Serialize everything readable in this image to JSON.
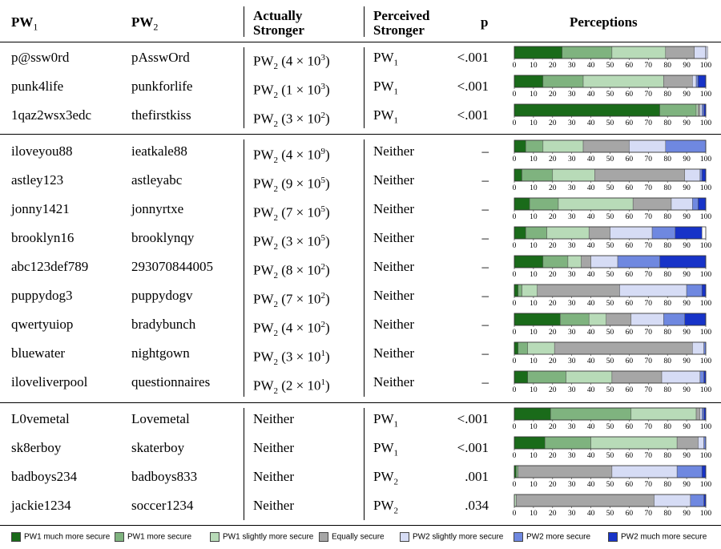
{
  "header": {
    "pw1": "PW",
    "pw1_sub": "1",
    "pw2": "PW",
    "pw2_sub": "2",
    "actually_line1": "Actually",
    "actually_line2": "Stronger",
    "perceived_line1": "Perceived",
    "perceived_line2": "Stronger",
    "p": "p",
    "perceptions": "Perceptions"
  },
  "chart_data": {
    "type": "bar",
    "orientation": "horizontal-stacked-100",
    "xlim": [
      0,
      100
    ],
    "ticks": [
      "0",
      "10",
      "20",
      "30",
      "40",
      "50",
      "60",
      "70",
      "80",
      "90",
      "100"
    ],
    "categories_legend": [
      "PW1 much more secure",
      "PW1 more secure",
      "PW1 slightly more secure",
      "Equally secure",
      "PW2 slightly more secure",
      "PW2 more secure",
      "PW2 much more secure"
    ],
    "colors": [
      "#1a6b1a",
      "#7fb37f",
      "#b8dbb8",
      "#a6a6a6",
      "#d6dcf5",
      "#6f88e0",
      "#1733c8"
    ],
    "rows": [
      {
        "pw1": "p@ssw0rd",
        "pw2": "pAsswOrd",
        "actual_base": "PW",
        "actual_sub": "2",
        "actual_rest": " (4 × 10",
        "actual_exp": "3",
        "actual_close": ")",
        "perceived": "PW",
        "perceived_sub": "1",
        "p": "<.001",
        "values": [
          25,
          26,
          28,
          15,
          7,
          0,
          0
        ]
      },
      {
        "pw1": "punk4life",
        "pw2": "punkforlife",
        "actual_base": "PW",
        "actual_sub": "2",
        "actual_rest": " (1 × 10",
        "actual_exp": "3",
        "actual_close": ")",
        "perceived": "PW",
        "perceived_sub": "1",
        "p": "<.001",
        "values": [
          15,
          21,
          42,
          15,
          2,
          1,
          4
        ]
      },
      {
        "pw1": "1qaz2wsx3edc",
        "pw2": "thefirstkiss",
        "actual_base": "PW",
        "actual_sub": "2",
        "actual_rest": " (3 × 10",
        "actual_exp": "2",
        "actual_close": ")",
        "perceived": "PW",
        "perceived_sub": "1",
        "p": "<.001",
        "values": [
          76,
          19,
          1,
          1,
          1,
          1,
          1
        ]
      },
      {
        "pw1": "iloveyou88",
        "pw2": "ieatkale88",
        "actual_base": "PW",
        "actual_sub": "2",
        "actual_rest": " (4 × 10",
        "actual_exp": "9",
        "actual_close": ")",
        "perceived": "Neither",
        "perceived_sub": "",
        "p": "–",
        "values": [
          6,
          9,
          21,
          24,
          19,
          21,
          0
        ]
      },
      {
        "pw1": "astley123",
        "pw2": "astleyabc",
        "actual_base": "PW",
        "actual_sub": "2",
        "actual_rest": " (9 × 10",
        "actual_exp": "5",
        "actual_close": ")",
        "perceived": "Neither",
        "perceived_sub": "",
        "p": "–",
        "values": [
          4,
          16,
          22,
          47,
          8,
          1,
          2
        ]
      },
      {
        "pw1": "jonny1421",
        "pw2": "jonnyrtxe",
        "actual_base": "PW",
        "actual_sub": "2",
        "actual_rest": " (7 × 10",
        "actual_exp": "5",
        "actual_close": ")",
        "perceived": "Neither",
        "perceived_sub": "",
        "p": "–",
        "values": [
          8,
          15,
          39,
          20,
          11,
          3,
          4
        ]
      },
      {
        "pw1": "brooklyn16",
        "pw2": "brooklynqy",
        "actual_base": "PW",
        "actual_sub": "2",
        "actual_rest": " (3 × 10",
        "actual_exp": "5",
        "actual_close": ")",
        "perceived": "Neither",
        "perceived_sub": "",
        "p": "–",
        "values": [
          6,
          11,
          22,
          11,
          22,
          12,
          14
        ]
      },
      {
        "pw1": "abc123def789",
        "pw2": "293070844005",
        "actual_base": "PW",
        "actual_sub": "2",
        "actual_rest": " (8 × 10",
        "actual_exp": "2",
        "actual_close": ")",
        "perceived": "Neither",
        "perceived_sub": "",
        "p": "–",
        "values": [
          15,
          13,
          7,
          5,
          14,
          22,
          24
        ]
      },
      {
        "pw1": "puppydog3",
        "pw2": "puppydogv",
        "actual_base": "PW",
        "actual_sub": "2",
        "actual_rest": " (7 × 10",
        "actual_exp": "2",
        "actual_close": ")",
        "perceived": "Neither",
        "perceived_sub": "",
        "p": "–",
        "values": [
          2,
          2,
          8,
          43,
          35,
          8,
          2
        ]
      },
      {
        "pw1": "qwertyuiop",
        "pw2": "bradybunch",
        "actual_base": "PW",
        "actual_sub": "2",
        "actual_rest": " (4 × 10",
        "actual_exp": "2",
        "actual_close": ")",
        "perceived": "Neither",
        "perceived_sub": "",
        "p": "–",
        "values": [
          24,
          15,
          9,
          13,
          17,
          11,
          11
        ]
      },
      {
        "pw1": "bluewater",
        "pw2": "nightgown",
        "actual_base": "PW",
        "actual_sub": "2",
        "actual_rest": " (3 × 10",
        "actual_exp": "1",
        "actual_close": ")",
        "perceived": "Neither",
        "perceived_sub": "",
        "p": "–",
        "values": [
          2,
          5,
          14,
          72,
          6,
          1,
          0
        ]
      },
      {
        "pw1": "iloveliverpool",
        "pw2": "questionnaires",
        "actual_base": "PW",
        "actual_sub": "2",
        "actual_rest": " (2 × 10",
        "actual_exp": "1",
        "actual_close": ")",
        "perceived": "Neither",
        "perceived_sub": "",
        "p": "–",
        "values": [
          7,
          20,
          24,
          26,
          20,
          2,
          1
        ]
      },
      {
        "pw1": "L0vemetal",
        "pw2": "Lovemetal",
        "actual_base": "Neither",
        "actual_sub": "",
        "actual_rest": "",
        "actual_exp": "",
        "actual_close": "",
        "perceived": "PW",
        "perceived_sub": "1",
        "p": "<.001",
        "values": [
          19,
          42,
          34,
          2,
          1,
          1,
          1
        ]
      },
      {
        "pw1": "sk8erboy",
        "pw2": "skaterboy",
        "actual_base": "Neither",
        "actual_sub": "",
        "actual_rest": "",
        "actual_exp": "",
        "actual_close": "",
        "perceived": "PW",
        "perceived_sub": "1",
        "p": "<.001",
        "values": [
          16,
          24,
          45,
          11,
          3,
          1,
          0
        ]
      },
      {
        "pw1": "badboys234",
        "pw2": "badboys833",
        "actual_base": "Neither",
        "actual_sub": "",
        "actual_rest": "",
        "actual_exp": "",
        "actual_close": "",
        "perceived": "PW",
        "perceived_sub": "2",
        "p": ".001",
        "values": [
          1,
          1,
          0,
          49,
          34,
          13,
          2
        ]
      },
      {
        "pw1": "jackie1234",
        "pw2": "soccer1234",
        "actual_base": "Neither",
        "actual_sub": "",
        "actual_rest": "",
        "actual_exp": "",
        "actual_close": "",
        "perceived": "PW",
        "perceived_sub": "2",
        "p": ".034",
        "values": [
          0,
          0,
          1,
          72,
          19,
          7,
          1
        ]
      }
    ]
  }
}
